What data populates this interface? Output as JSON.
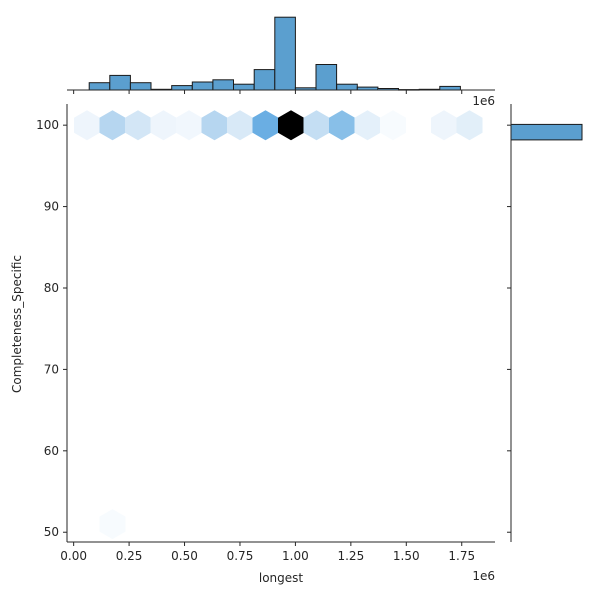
{
  "chart_data": {
    "type": "hexbin-jointplot",
    "xlabel": "longest",
    "ylabel": "Completeness_Specific",
    "x_offset_label": "1e6",
    "x_offset_label_top": "1e6",
    "xlim": [
      -0.03,
      1.9
    ],
    "ylim": [
      48.8,
      102.6
    ],
    "x_ticks": [
      0.0,
      0.25,
      0.5,
      0.75,
      1.0,
      1.25,
      1.5,
      1.75
    ],
    "x_tick_labels": [
      "0.00",
      "0.25",
      "0.50",
      "0.75",
      "1.00",
      "1.25",
      "1.50",
      "1.75"
    ],
    "y_ticks": [
      50,
      60,
      70,
      80,
      90,
      100
    ],
    "y_tick_labels": [
      "50",
      "60",
      "70",
      "80",
      "90",
      "100"
    ],
    "colors": {
      "histogram_fill": "#5b9fcf",
      "histogram_edge": "#1a1a1a",
      "axis": "#262626"
    },
    "hexbins": [
      {
        "x": 0.06,
        "y": 100,
        "color": "#eef5fc"
      },
      {
        "x": 0.175,
        "y": 100,
        "color": "#b6d6f0"
      },
      {
        "x": 0.29,
        "y": 100,
        "color": "#d3e6f6"
      },
      {
        "x": 0.405,
        "y": 100,
        "color": "#eef5fc"
      },
      {
        "x": 0.52,
        "y": 100,
        "color": "#f1f7fd"
      },
      {
        "x": 0.635,
        "y": 100,
        "color": "#b6d6f0"
      },
      {
        "x": 0.75,
        "y": 100,
        "color": "#d8e9f7"
      },
      {
        "x": 0.865,
        "y": 100,
        "color": "#6aaee3"
      },
      {
        "x": 0.98,
        "y": 100,
        "color": "#000000"
      },
      {
        "x": 1.095,
        "y": 100,
        "color": "#c4def3"
      },
      {
        "x": 1.21,
        "y": 100,
        "color": "#88bfe8"
      },
      {
        "x": 1.325,
        "y": 100,
        "color": "#e4f0fa"
      },
      {
        "x": 1.44,
        "y": 100,
        "color": "#f7fbfe"
      },
      {
        "x": 1.67,
        "y": 100,
        "color": "#eef5fc"
      },
      {
        "x": 1.785,
        "y": 100,
        "color": "#e2eff9"
      },
      {
        "x": 0.175,
        "y": 51,
        "color": "#f7fbfe"
      }
    ],
    "x_histogram": {
      "bin_edges": [
        0.07,
        0.163,
        0.256,
        0.349,
        0.442,
        0.535,
        0.628,
        0.721,
        0.814,
        0.907,
        1.0,
        1.093,
        1.186,
        1.279,
        1.372,
        1.465,
        1.558,
        1.651,
        1.744,
        1.837
      ],
      "counts": [
        1,
        2,
        1,
        0.1,
        0.6,
        1.1,
        1.4,
        0.8,
        2.8,
        10,
        0.3,
        3.5,
        0.8,
        0.4,
        0.2,
        0.05,
        0.1,
        0.5,
        0.0
      ],
      "ylim": [
        0,
        10.3
      ]
    },
    "y_histogram": {
      "bins": [
        {
          "y0": 98.2,
          "y1": 100.1,
          "count": 1.0
        }
      ],
      "xlim": [
        0,
        1.0
      ]
    }
  }
}
